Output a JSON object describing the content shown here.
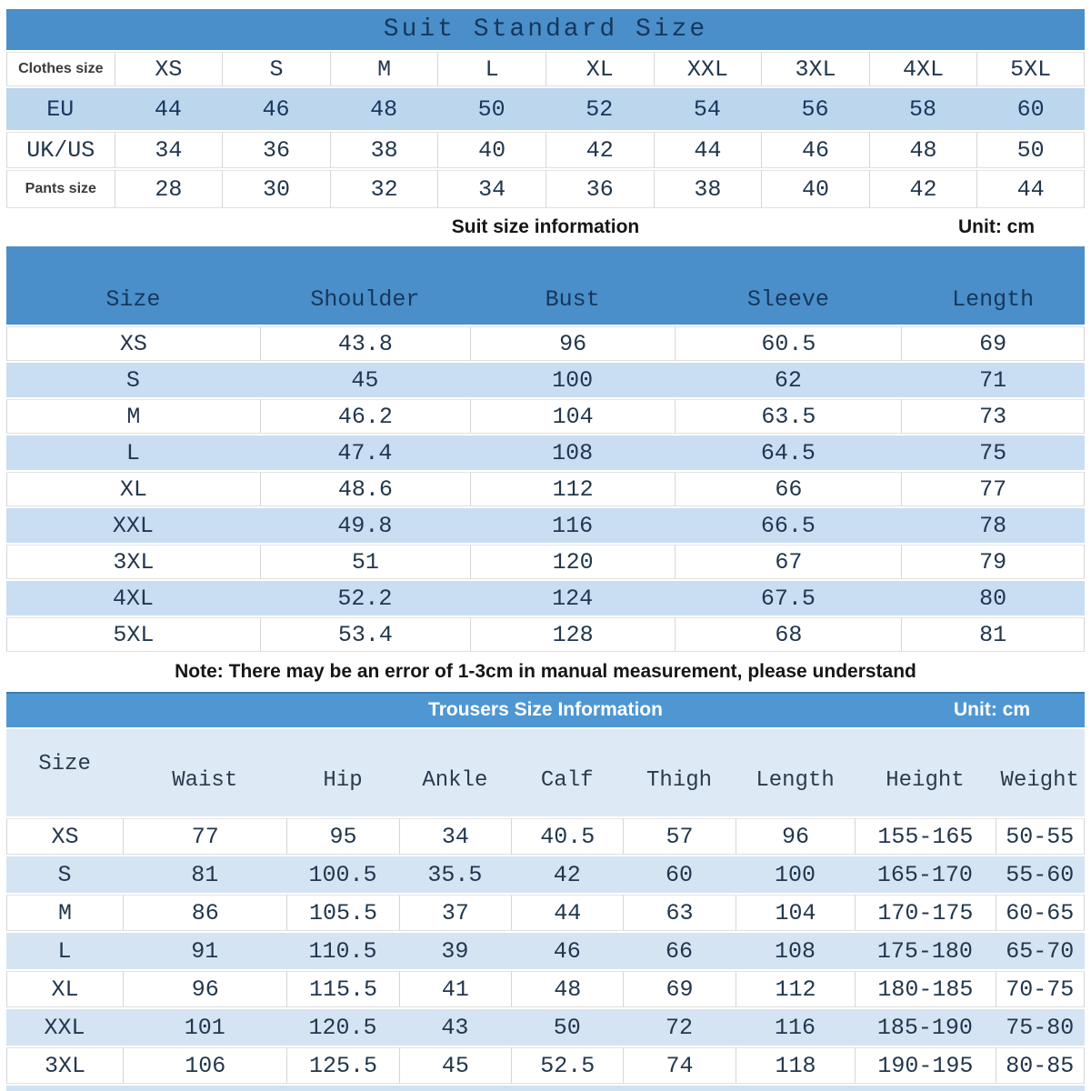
{
  "colors": {
    "header_band_blue": "#4a8fc9",
    "trousers_band_blue": "#4f97d2",
    "stripe_blue_t1": "#bcd6ee",
    "stripe_blue_t2": "#c9def2",
    "stripe_blue_t3": "#d5e4f3",
    "trousers_header_bg": "#dde9f5",
    "navy_text": "#17365c"
  },
  "suit_standard": {
    "title": "Suit Standard Size",
    "rows": [
      {
        "label": "Clothes size",
        "label_style": "sans",
        "highlight": false,
        "values": [
          "XS",
          "S",
          "M",
          "L",
          "XL",
          "XXL",
          "3XL",
          "4XL",
          "5XL"
        ]
      },
      {
        "label": "EU",
        "label_style": "mono",
        "highlight": true,
        "values": [
          "44",
          "46",
          "48",
          "50",
          "52",
          "54",
          "56",
          "58",
          "60"
        ]
      },
      {
        "label": "UK/US",
        "label_style": "mono",
        "highlight": false,
        "values": [
          "34",
          "36",
          "38",
          "40",
          "42",
          "44",
          "46",
          "48",
          "50"
        ]
      },
      {
        "label": "Pants size",
        "label_style": "sans",
        "highlight": false,
        "values": [
          "28",
          "30",
          "32",
          "34",
          "36",
          "38",
          "40",
          "42",
          "44"
        ]
      }
    ]
  },
  "suit_info": {
    "title": "Suit size information",
    "unit": "Unit: cm",
    "columns": [
      "Size",
      "Shoulder",
      "Bust",
      "Sleeve",
      "Length"
    ],
    "rows": [
      [
        "XS",
        "43.8",
        "96",
        "60.5",
        "69"
      ],
      [
        "S",
        "45",
        "100",
        "62",
        "71"
      ],
      [
        "M",
        "46.2",
        "104",
        "63.5",
        "73"
      ],
      [
        "L",
        "47.4",
        "108",
        "64.5",
        "75"
      ],
      [
        "XL",
        "48.6",
        "112",
        "66",
        "77"
      ],
      [
        "XXL",
        "49.8",
        "116",
        "66.5",
        "78"
      ],
      [
        "3XL",
        "51",
        "120",
        "67",
        "79"
      ],
      [
        "4XL",
        "52.2",
        "124",
        "67.5",
        "80"
      ],
      [
        "5XL",
        "53.4",
        "128",
        "68",
        "81"
      ]
    ]
  },
  "note": "Note: There may be an error of 1-3cm in manual measurement, please understand",
  "trousers": {
    "title": "Trousers Size Information",
    "unit": "Unit: cm",
    "columns": [
      "Size",
      "Waist",
      "Hip",
      "Ankle",
      "Calf",
      "Thigh",
      "Length",
      "Height",
      "Weight"
    ],
    "rows": [
      [
        "XS",
        "77",
        "95",
        "34",
        "40.5",
        "57",
        "96",
        "155-165",
        "50-55"
      ],
      [
        "S",
        "81",
        "100.5",
        "35.5",
        "42",
        "60",
        "100",
        "165-170",
        "55-60"
      ],
      [
        "M",
        "86",
        "105.5",
        "37",
        "44",
        "63",
        "104",
        "170-175",
        "60-65"
      ],
      [
        "L",
        "91",
        "110.5",
        "39",
        "46",
        "66",
        "108",
        "175-180",
        "65-70"
      ],
      [
        "XL",
        "96",
        "115.5",
        "41",
        "48",
        "69",
        "112",
        "180-185",
        "70-75"
      ],
      [
        "XXL",
        "101",
        "120.5",
        "43",
        "50",
        "72",
        "116",
        "185-190",
        "75-80"
      ],
      [
        "3XL",
        "106",
        "125.5",
        "45",
        "52.5",
        "74",
        "118",
        "190-195",
        "80-85"
      ]
    ]
  }
}
